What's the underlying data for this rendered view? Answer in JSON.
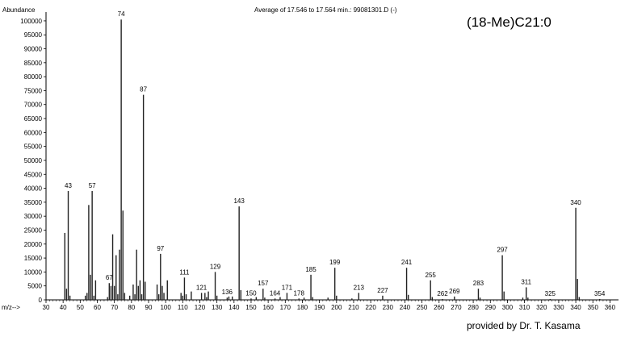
{
  "header": {
    "abundance_label": "Abundance",
    "average_label": "Average of 17.546 to 17.564 min.: 99081301.D (-)"
  },
  "compound_name": "(18-Me)C21:0",
  "credit": "provided by Dr. T. Kasama",
  "chart_data": {
    "type": "bar",
    "title": "Average of 17.546 to 17.564 min.: 99081301.D (-)",
    "xlabel": "m/z-->",
    "ylabel": "Abundance",
    "xlim": [
      30,
      365
    ],
    "ylim": [
      0,
      102000
    ],
    "x_ticks": [
      30,
      40,
      50,
      60,
      70,
      80,
      90,
      100,
      110,
      120,
      130,
      140,
      150,
      160,
      170,
      180,
      190,
      200,
      210,
      220,
      230,
      240,
      250,
      260,
      270,
      280,
      290,
      300,
      310,
      320,
      330,
      340,
      350,
      360
    ],
    "y_ticks": [
      0,
      5000,
      10000,
      15000,
      20000,
      25000,
      30000,
      35000,
      40000,
      45000,
      50000,
      55000,
      60000,
      65000,
      70000,
      75000,
      80000,
      85000,
      90000,
      95000,
      100000
    ],
    "peaks": [
      {
        "mz": 41,
        "abundance": 24000
      },
      {
        "mz": 42,
        "abundance": 4000
      },
      {
        "mz": 43,
        "abundance": 39000,
        "label": "43"
      },
      {
        "mz": 44,
        "abundance": 1500
      },
      {
        "mz": 53,
        "abundance": 1500
      },
      {
        "mz": 54,
        "abundance": 2500
      },
      {
        "mz": 55,
        "abundance": 34000
      },
      {
        "mz": 56,
        "abundance": 9000
      },
      {
        "mz": 57,
        "abundance": 39000,
        "label": "57"
      },
      {
        "mz": 58,
        "abundance": 1500
      },
      {
        "mz": 59,
        "abundance": 7000
      },
      {
        "mz": 66,
        "abundance": 1000
      },
      {
        "mz": 67,
        "abundance": 6000,
        "label": "67"
      },
      {
        "mz": 68,
        "abundance": 5000
      },
      {
        "mz": 69,
        "abundance": 23500
      },
      {
        "mz": 70,
        "abundance": 5000
      },
      {
        "mz": 71,
        "abundance": 16000
      },
      {
        "mz": 72,
        "abundance": 2000
      },
      {
        "mz": 73,
        "abundance": 18000
      },
      {
        "mz": 74,
        "abundance": 100500,
        "label": "74"
      },
      {
        "mz": 75,
        "abundance": 32000
      },
      {
        "mz": 76,
        "abundance": 2500
      },
      {
        "mz": 79,
        "abundance": 1500
      },
      {
        "mz": 81,
        "abundance": 5500
      },
      {
        "mz": 82,
        "abundance": 2000
      },
      {
        "mz": 83,
        "abundance": 18000
      },
      {
        "mz": 84,
        "abundance": 5000
      },
      {
        "mz": 85,
        "abundance": 7000
      },
      {
        "mz": 86,
        "abundance": 2000
      },
      {
        "mz": 87,
        "abundance": 73500,
        "label": "87"
      },
      {
        "mz": 88,
        "abundance": 6500
      },
      {
        "mz": 95,
        "abundance": 5500
      },
      {
        "mz": 96,
        "abundance": 2000
      },
      {
        "mz": 97,
        "abundance": 16500,
        "label": "97"
      },
      {
        "mz": 98,
        "abundance": 5000
      },
      {
        "mz": 99,
        "abundance": 2500
      },
      {
        "mz": 101,
        "abundance": 7000
      },
      {
        "mz": 109,
        "abundance": 2500
      },
      {
        "mz": 110,
        "abundance": 1500
      },
      {
        "mz": 111,
        "abundance": 8000,
        "label": "111"
      },
      {
        "mz": 112,
        "abundance": 2000
      },
      {
        "mz": 115,
        "abundance": 3000
      },
      {
        "mz": 121,
        "abundance": 2500,
        "label": "121"
      },
      {
        "mz": 123,
        "abundance": 2500
      },
      {
        "mz": 124,
        "abundance": 1000
      },
      {
        "mz": 125,
        "abundance": 3000
      },
      {
        "mz": 129,
        "abundance": 10000,
        "label": "129"
      },
      {
        "mz": 130,
        "abundance": 1500
      },
      {
        "mz": 136,
        "abundance": 800,
        "label": "136"
      },
      {
        "mz": 137,
        "abundance": 1200
      },
      {
        "mz": 139,
        "abundance": 1200
      },
      {
        "mz": 143,
        "abundance": 33500,
        "label": "143"
      },
      {
        "mz": 144,
        "abundance": 3500
      },
      {
        "mz": 150,
        "abundance": 500,
        "label": "150"
      },
      {
        "mz": 153,
        "abundance": 1000
      },
      {
        "mz": 157,
        "abundance": 4000,
        "label": "157"
      },
      {
        "mz": 158,
        "abundance": 800
      },
      {
        "mz": 164,
        "abundance": 500,
        "label": "164"
      },
      {
        "mz": 167,
        "abundance": 1000
      },
      {
        "mz": 171,
        "abundance": 2500,
        "label": "171"
      },
      {
        "mz": 178,
        "abundance": 500,
        "label": "178"
      },
      {
        "mz": 181,
        "abundance": 800
      },
      {
        "mz": 185,
        "abundance": 9000,
        "label": "185"
      },
      {
        "mz": 186,
        "abundance": 1000
      },
      {
        "mz": 195,
        "abundance": 800
      },
      {
        "mz": 199,
        "abundance": 11500,
        "label": "199"
      },
      {
        "mz": 200,
        "abundance": 1500
      },
      {
        "mz": 209,
        "abundance": 500
      },
      {
        "mz": 213,
        "abundance": 2500,
        "label": "213"
      },
      {
        "mz": 227,
        "abundance": 1500,
        "label": "227"
      },
      {
        "mz": 241,
        "abundance": 11500,
        "label": "241"
      },
      {
        "mz": 242,
        "abundance": 1800
      },
      {
        "mz": 255,
        "abundance": 7000,
        "label": "255"
      },
      {
        "mz": 256,
        "abundance": 1000
      },
      {
        "mz": 262,
        "abundance": 300,
        "label": "262"
      },
      {
        "mz": 269,
        "abundance": 1200,
        "label": "269"
      },
      {
        "mz": 283,
        "abundance": 4000,
        "label": "283"
      },
      {
        "mz": 284,
        "abundance": 800
      },
      {
        "mz": 297,
        "abundance": 16000,
        "label": "297"
      },
      {
        "mz": 298,
        "abundance": 3000
      },
      {
        "mz": 309,
        "abundance": 800
      },
      {
        "mz": 311,
        "abundance": 4500,
        "label": "311"
      },
      {
        "mz": 312,
        "abundance": 800
      },
      {
        "mz": 325,
        "abundance": 300,
        "label": "325"
      },
      {
        "mz": 340,
        "abundance": 33000,
        "label": "340"
      },
      {
        "mz": 341,
        "abundance": 7500
      },
      {
        "mz": 342,
        "abundance": 1000
      },
      {
        "mz": 354,
        "abundance": 300,
        "label": "354"
      }
    ]
  }
}
